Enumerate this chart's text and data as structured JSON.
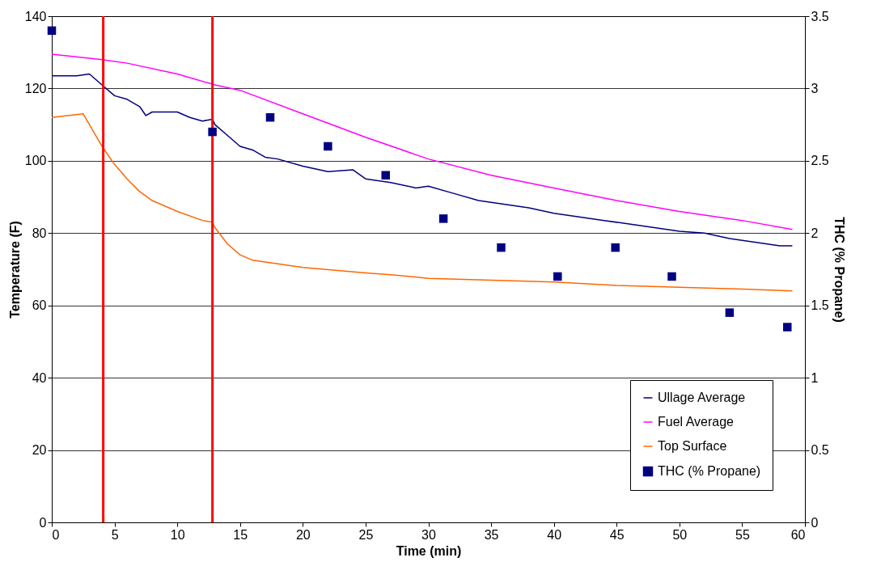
{
  "chart_data": {
    "type": "line",
    "xlabel": "Time (min)",
    "ylabel": "Temperature (F)",
    "y2label": "THC (% Propane)",
    "xlim": [
      0,
      60
    ],
    "xticks": [
      0,
      5,
      10,
      15,
      20,
      25,
      30,
      35,
      40,
      45,
      50,
      55,
      60
    ],
    "ylim": [
      0,
      140
    ],
    "yticks": [
      0,
      20,
      40,
      60,
      80,
      100,
      120,
      140
    ],
    "y2lim": [
      0,
      3.5
    ],
    "y2ticks": [
      0,
      0.5,
      1,
      1.5,
      2,
      2.5,
      3,
      3.5
    ],
    "grid": "y",
    "legend": "bottom right",
    "line_style": "solid",
    "ref_lines": [
      {
        "axis": "x",
        "value": 4.1,
        "color": "#ff0000"
      },
      {
        "axis": "x",
        "value": 12.8,
        "color": "#ff0000"
      }
    ],
    "series": [
      {
        "name": "Ullage Average",
        "color": "#000080",
        "x": [
          0,
          2,
          3,
          4,
          5,
          6,
          7,
          7.5,
          8,
          10,
          11,
          12,
          12.8,
          13,
          14,
          15,
          16,
          17,
          18,
          20,
          22,
          24,
          25,
          27,
          29,
          30,
          32,
          34,
          36,
          38,
          40,
          42,
          44,
          46,
          48,
          50,
          52,
          54,
          56,
          58,
          59
        ],
        "values": [
          123.5,
          123.5,
          124,
          121,
          118,
          117,
          115,
          112.5,
          113.5,
          113.5,
          112,
          111,
          111.5,
          110,
          107,
          104,
          103,
          101,
          100.5,
          98.5,
          97,
          97.5,
          95,
          94,
          92.5,
          93,
          91,
          89,
          88,
          87,
          85.5,
          84.5,
          83.5,
          82.5,
          81.5,
          80.5,
          80,
          78.5,
          77.5,
          76.5,
          76.5
        ]
      },
      {
        "name": "Fuel Average",
        "color": "#ff00ff",
        "x": [
          0,
          4,
          6,
          10,
          13,
          15,
          20,
          25,
          30,
          35,
          40,
          45,
          50,
          55,
          59
        ],
        "values": [
          129.5,
          128,
          127,
          124,
          121,
          119.5,
          113,
          106.5,
          100.5,
          96,
          92.5,
          89,
          86,
          83.5,
          81
        ]
      },
      {
        "name": "Top Surface",
        "color": "#ff6600",
        "x": [
          0,
          2.5,
          3,
          4,
          5,
          6,
          7,
          8,
          10,
          12,
          12.8,
          13,
          14,
          15,
          16,
          18,
          20,
          25,
          27,
          30,
          35,
          40,
          45,
          50,
          55,
          59
        ],
        "values": [
          112,
          113,
          110,
          104,
          99,
          95,
          91.5,
          89,
          86,
          83.5,
          83,
          81.5,
          77,
          74,
          72.5,
          71.5,
          70.5,
          69,
          68.5,
          67.5,
          67,
          66.5,
          65.5,
          65,
          64.5,
          64
        ]
      },
      {
        "name": "THC (% Propane)",
        "type": "scatter",
        "axis": "y2",
        "marker": "square",
        "color": "#000080",
        "x": [
          0,
          12.8,
          17.4,
          22,
          26.6,
          31.2,
          35.8,
          40.3,
          44.9,
          49.4,
          54,
          58.6
        ],
        "values": [
          3.4,
          2.7,
          2.8,
          2.6,
          2.4,
          2.1,
          1.9,
          1.7,
          1.9,
          1.7,
          1.45,
          1.35
        ]
      }
    ]
  }
}
